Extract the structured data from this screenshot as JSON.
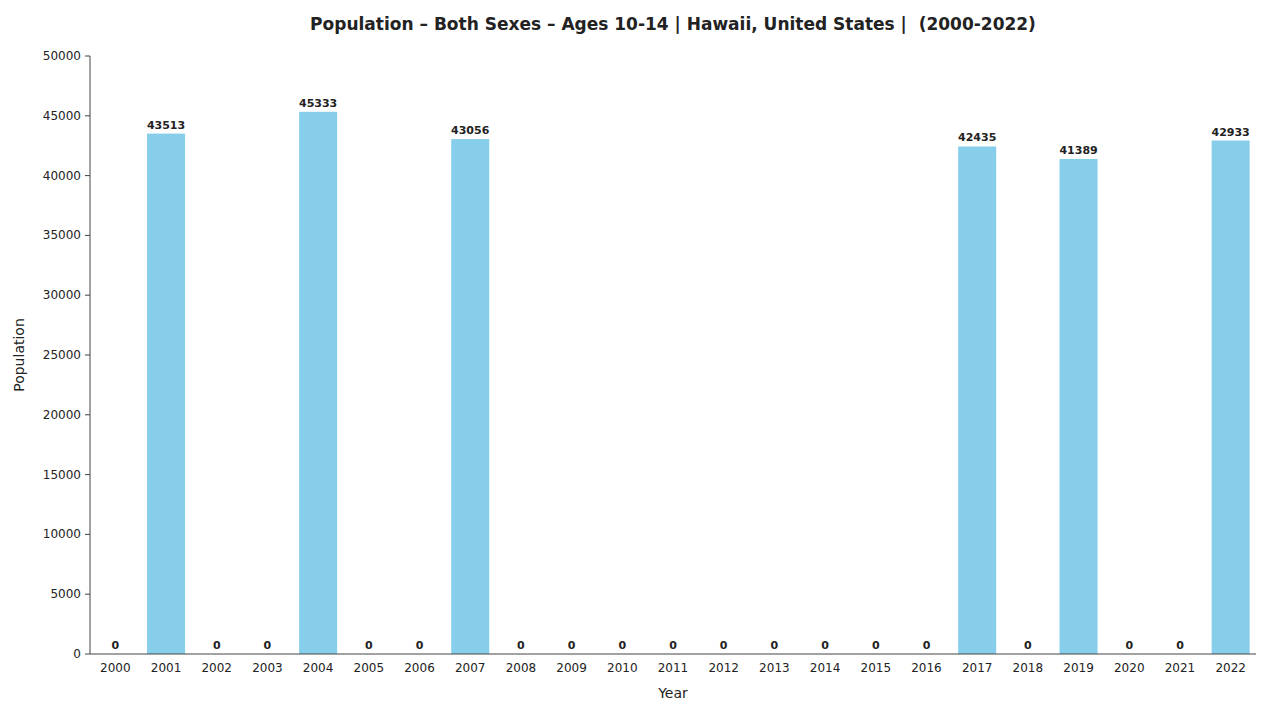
{
  "chart_data": {
    "type": "bar",
    "title": "Population – Both Sexes – Ages 10-14 | Hawaii, United States |  (2000-2022)",
    "x_label": "Year",
    "y_label": "Population",
    "categories": [
      "2000",
      "2001",
      "2002",
      "2003",
      "2004",
      "2005",
      "2006",
      "2007",
      "2008",
      "2009",
      "2010",
      "2011",
      "2012",
      "2013",
      "2014",
      "2015",
      "2016",
      "2017",
      "2018",
      "2019",
      "2020",
      "2021",
      "2022"
    ],
    "values": [
      0,
      43513,
      0,
      0,
      45333,
      0,
      0,
      43056,
      0,
      0,
      0,
      0,
      0,
      0,
      0,
      0,
      0,
      42435,
      0,
      41389,
      0,
      0,
      42933
    ],
    "color": "#87CEEB",
    "ylim": [
      0,
      50000
    ],
    "yticks": [
      0,
      5000,
      10000,
      15000,
      20000,
      25000,
      30000,
      35000,
      40000,
      45000,
      50000
    ],
    "grid": false,
    "data_labels": true
  }
}
